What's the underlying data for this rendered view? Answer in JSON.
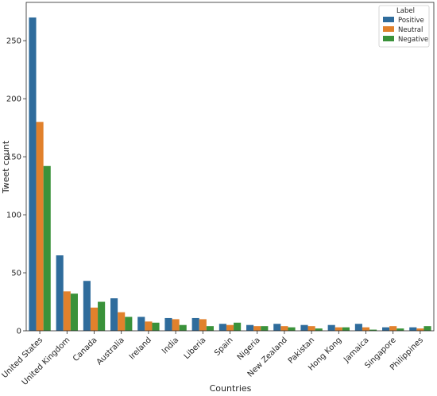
{
  "chart_data": {
    "type": "bar",
    "xlabel": "Countries",
    "ylabel": "Tweet count",
    "ylim": [
      0,
      283
    ],
    "yticks": [
      0,
      50,
      100,
      150,
      200,
      250
    ],
    "categories": [
      "United States",
      "United Kingdom",
      "Canada",
      "Australia",
      "Ireland",
      "India",
      "Liberia",
      "Spain",
      "Nigeria",
      "New Zealand",
      "Pakistan",
      "Hong Kong",
      "Jamaica",
      "Singapore",
      "Philippines"
    ],
    "series": [
      {
        "name": "Positive",
        "color": "#2f6c9c",
        "values": [
          270,
          65,
          43,
          28,
          12,
          11,
          11,
          6,
          5,
          6,
          5,
          5,
          6,
          3,
          3
        ]
      },
      {
        "name": "Neutral",
        "color": "#e1812c",
        "values": [
          180,
          34,
          20,
          16,
          8,
          10,
          10,
          5,
          4,
          4,
          4,
          3,
          3,
          4,
          2
        ]
      },
      {
        "name": "Negative",
        "color": "#3a923a",
        "values": [
          142,
          32,
          25,
          12,
          7,
          5,
          4,
          7,
          4,
          3,
          2,
          3,
          1,
          2,
          4
        ]
      }
    ],
    "legend": {
      "title": "Label",
      "placement": "top-right"
    },
    "grid": false
  }
}
